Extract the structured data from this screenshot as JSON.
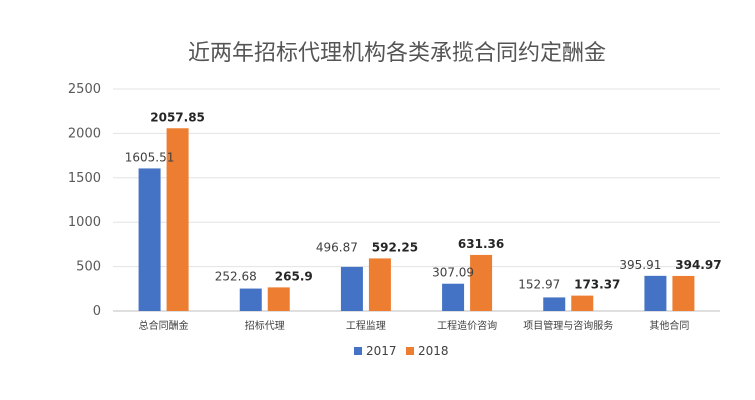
{
  "chart_data": {
    "type": "bar",
    "title": "近两年招标代理机构各类承揽合同约定酬金",
    "xlabel": "",
    "ylabel": "",
    "categories": [
      "总合同酬金",
      "招标代理",
      "工程监理",
      "工程造价咨询",
      "项目管理与咨询服务",
      "其他合同"
    ],
    "ylim": [
      0,
      2500
    ],
    "yticks": [
      0,
      500,
      1000,
      1500,
      2000,
      2500
    ],
    "grid": true,
    "legend_position": "bottom",
    "series": [
      {
        "name": "2017",
        "color": "#4472c4",
        "values": [
          1605.51,
          252.68,
          496.87,
          307.09,
          152.97,
          395.91
        ],
        "labels": [
          "1605.51",
          "252.68",
          "496.87",
          "307.09",
          "152.97",
          "395.91"
        ]
      },
      {
        "name": "2018",
        "color": "#ed7d31",
        "values": [
          2057.85,
          265.9,
          592.25,
          631.36,
          173.37,
          394.97
        ],
        "labels": [
          "2057.85",
          "265.9",
          "592.25",
          "631.36",
          "173.37",
          "394.97"
        ]
      }
    ]
  }
}
